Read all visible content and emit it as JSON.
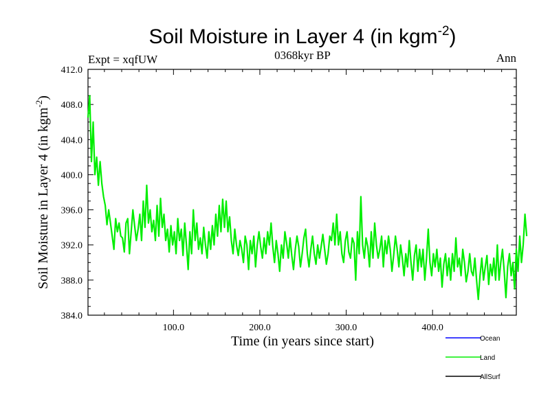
{
  "chart_data": {
    "type": "line",
    "title": "Soil Moisture in Layer 4 (in kgm",
    "title_sup": "-2",
    "title_end": ")",
    "subtitle_left": "Expt = xqfUW",
    "subtitle_center": "0368kyr BP",
    "subtitle_right": "Ann",
    "xlabel": "Time (in years since start)",
    "ylabel": "Soil Moisture in Layer 4 (in kgm",
    "ylabel_sup": "-2",
    "ylabel_end": ")",
    "xlim": [
      1,
      497
    ],
    "ylim": [
      384,
      412
    ],
    "x_ticks": [
      100,
      200,
      300,
      400
    ],
    "x_tick_labels": [
      "100.0",
      "200.0",
      "300.0",
      "400.0"
    ],
    "y_ticks": [
      384,
      388,
      392,
      396,
      400,
      404,
      408,
      412
    ],
    "y_tick_labels": [
      "384.0",
      "388.0",
      "392.0",
      "396.0",
      "400.0",
      "404.0",
      "408.0",
      "412.0"
    ],
    "series": [
      {
        "name": "Ocean",
        "color": "#0000ff",
        "values": []
      },
      {
        "name": "Land",
        "color": "#00ee00",
        "x_start": 1,
        "x_step": 2,
        "values": [
          406.5,
          409.0,
          401.5,
          406.0,
          400.0,
          402.0,
          398.8,
          401.5,
          399.0,
          397.5,
          396.5,
          394.3,
          396.0,
          394.5,
          393.0,
          391.5,
          395.0,
          393.5,
          394.5,
          393.0,
          392.8,
          391.2,
          394.5,
          395.0,
          391.0,
          393.5,
          396.0,
          394.2,
          392.5,
          393.8,
          395.5,
          392.5,
          397.0,
          394.0,
          398.8,
          394.5,
          396.0,
          393.5,
          394.8,
          392.5,
          396.5,
          393.0,
          397.3,
          394.0,
          395.5,
          392.5,
          393.8,
          391.2,
          394.2,
          392.0,
          393.5,
          391.0,
          395.0,
          392.5,
          393.8,
          390.8,
          394.5,
          392.0,
          389.2,
          393.5,
          391.0,
          396.0,
          392.5,
          394.5,
          391.5,
          392.8,
          391.0,
          394.0,
          392.0,
          390.5,
          393.5,
          391.5,
          394.2,
          392.0,
          395.5,
          393.0,
          396.5,
          393.5,
          397.2,
          394.0,
          397.0,
          393.5,
          395.2,
          392.5,
          391.0,
          393.8,
          392.0,
          390.8,
          392.5,
          391.5,
          390.0,
          393.0,
          392.0,
          389.2,
          392.5,
          391.0,
          393.0,
          389.5,
          392.0,
          393.5,
          391.8,
          390.5,
          392.8,
          391.0,
          393.5,
          392.0,
          394.5,
          391.8,
          390.0,
          392.5,
          391.0,
          389.0,
          392.0,
          390.5,
          393.5,
          392.2,
          390.5,
          392.8,
          390.8,
          389.2,
          391.5,
          393.0,
          391.8,
          389.5,
          391.0,
          392.8,
          393.8,
          391.0,
          389.5,
          391.5,
          393.0,
          391.0,
          389.8,
          392.0,
          390.5,
          391.8,
          393.2,
          391.5,
          389.8,
          391.0,
          393.0,
          392.5,
          394.5,
          392.0,
          395.5,
          392.0,
          393.5,
          391.0,
          390.0,
          392.5,
          393.5,
          391.2,
          390.5,
          392.8,
          392.2,
          388.0,
          393.5,
          391.0,
          397.5,
          392.0,
          390.5,
          392.8,
          391.8,
          389.5,
          393.5,
          390.5,
          394.5,
          392.0,
          390.5,
          391.5,
          393.0,
          389.5,
          392.5,
          391.0,
          393.0,
          391.5,
          389.0,
          390.8,
          393.0,
          391.5,
          389.5,
          392.0,
          390.5,
          388.5,
          391.0,
          389.5,
          392.5,
          390.0,
          388.0,
          390.8,
          392.0,
          389.0,
          391.5,
          389.5,
          391.5,
          388.0,
          390.5,
          393.8,
          390.0,
          388.5,
          391.0,
          389.5,
          391.5,
          389.0,
          390.5,
          387.2,
          389.8,
          391.0,
          388.5,
          390.5,
          388.0,
          391.0,
          389.0,
          392.8,
          389.5,
          390.5,
          388.5,
          391.5,
          390.0,
          387.8,
          389.0,
          391.0,
          389.0,
          388.5,
          390.5,
          388.0,
          385.8,
          388.5,
          390.5,
          388.0,
          389.5,
          390.8,
          387.5,
          389.8,
          388.5,
          390.5,
          388.0,
          392.0,
          388.0,
          390.0,
          391.5,
          389.0,
          386.0,
          389.5,
          391.0,
          388.5,
          390.0,
          387.0,
          391.5,
          389.0,
          393.0,
          390.0,
          392.0,
          395.5,
          393.0
        ]
      },
      {
        "name": "AllSurf",
        "color": "#000000",
        "values": []
      }
    ]
  }
}
